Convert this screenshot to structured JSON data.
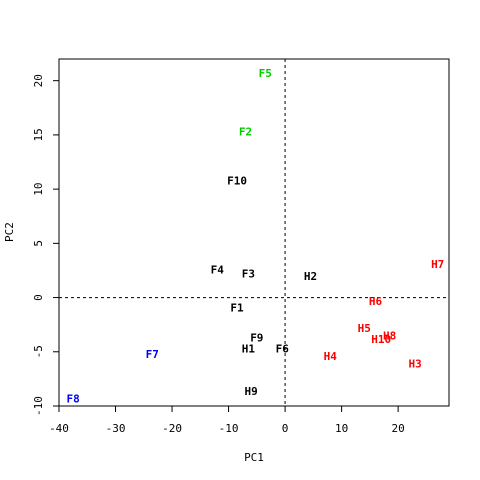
{
  "chart_data": {
    "type": "scatter",
    "title": "",
    "xlabel": "PC1",
    "ylabel": "PC2",
    "xlim": [
      -40,
      29
    ],
    "ylim": [
      -10,
      22
    ],
    "xticks": [
      -40,
      -30,
      -20,
      -10,
      0,
      10,
      20
    ],
    "yticks": [
      -10,
      -5,
      0,
      5,
      10,
      15,
      20
    ],
    "reference_lines": {
      "x": 0,
      "y": 0,
      "style": "dashed"
    },
    "grid": false,
    "colors": {
      "black": "#000000",
      "red": "#ff0000",
      "green": "#00cc00",
      "blue": "#0000ff"
    },
    "points": [
      {
        "label": "F5",
        "x": -3.5,
        "y": 20.7,
        "color": "#00cc00"
      },
      {
        "label": "F2",
        "x": -7,
        "y": 15.3,
        "color": "#00cc00"
      },
      {
        "label": "F10",
        "x": -8.5,
        "y": 10.8,
        "color": "#000000"
      },
      {
        "label": "F4",
        "x": -12,
        "y": 2.6,
        "color": "#000000"
      },
      {
        "label": "F3",
        "x": -6.5,
        "y": 2.2,
        "color": "#000000"
      },
      {
        "label": "H2",
        "x": 4.5,
        "y": 2.0,
        "color": "#000000"
      },
      {
        "label": "H7",
        "x": 27,
        "y": 3.1,
        "color": "#ff0000"
      },
      {
        "label": "H6",
        "x": 16,
        "y": -0.3,
        "color": "#ff0000"
      },
      {
        "label": "F1",
        "x": -8.5,
        "y": -0.9,
        "color": "#000000"
      },
      {
        "label": "H5",
        "x": 14,
        "y": -2.8,
        "color": "#ff0000"
      },
      {
        "label": "H8",
        "x": 18.5,
        "y": -3.5,
        "color": "#ff0000"
      },
      {
        "label": "H10",
        "x": 17,
        "y": -3.8,
        "color": "#ff0000"
      },
      {
        "label": "F9",
        "x": -5,
        "y": -3.7,
        "color": "#000000"
      },
      {
        "label": "H1",
        "x": -6.5,
        "y": -4.7,
        "color": "#000000"
      },
      {
        "label": "F6",
        "x": -0.5,
        "y": -4.7,
        "color": "#000000"
      },
      {
        "label": "F7",
        "x": -23.5,
        "y": -5.2,
        "color": "#0000ff"
      },
      {
        "label": "H4",
        "x": 8,
        "y": -5.4,
        "color": "#ff0000"
      },
      {
        "label": "H3",
        "x": 23,
        "y": -6.1,
        "color": "#ff0000"
      },
      {
        "label": "H9",
        "x": -6,
        "y": -8.6,
        "color": "#000000"
      },
      {
        "label": "F8",
        "x": -37.5,
        "y": -9.3,
        "color": "#0000ff"
      }
    ]
  }
}
